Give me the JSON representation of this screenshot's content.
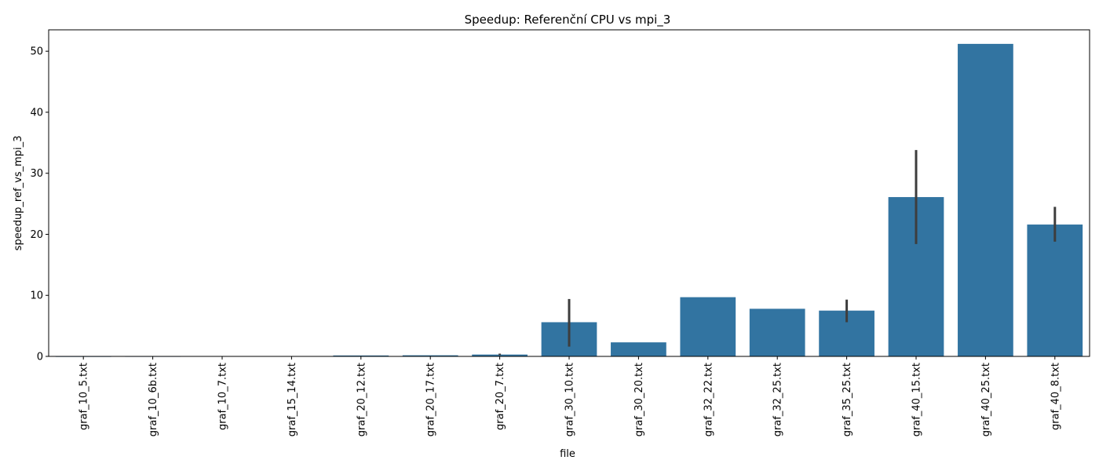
{
  "chart_data": {
    "type": "bar",
    "title": "Speedup: Referenční CPU vs mpi_3",
    "xlabel": "file",
    "ylabel": "speedup_ref_vs_mpi_3",
    "ylim": [
      0,
      53.5
    ],
    "yticks": [
      0,
      10,
      20,
      30,
      40,
      50
    ],
    "grid": false,
    "bar_color": "#3274a1",
    "errorbar_color": "#3d3d3d",
    "categories": [
      "graf_10_5.txt",
      "graf_10_6b.txt",
      "graf_10_7.txt",
      "graf_15_14.txt",
      "graf_20_12.txt",
      "graf_20_17.txt",
      "graf_20_7.txt",
      "graf_30_10.txt",
      "graf_30_20.txt",
      "graf_32_22.txt",
      "graf_32_25.txt",
      "graf_35_25.txt",
      "graf_40_15.txt",
      "graf_40_25.txt",
      "graf_40_8.txt"
    ],
    "values": [
      0.02,
      0.03,
      0.04,
      0.04,
      0.15,
      0.18,
      0.3,
      5.6,
      2.3,
      9.7,
      7.8,
      7.5,
      26.1,
      51.2,
      21.6
    ],
    "error_low": [
      null,
      null,
      null,
      null,
      null,
      null,
      0.2,
      1.6,
      null,
      null,
      null,
      5.6,
      18.4,
      null,
      18.8
    ],
    "error_high": [
      null,
      null,
      null,
      null,
      null,
      null,
      0.45,
      9.4,
      null,
      null,
      null,
      9.3,
      33.8,
      null,
      24.5
    ]
  }
}
